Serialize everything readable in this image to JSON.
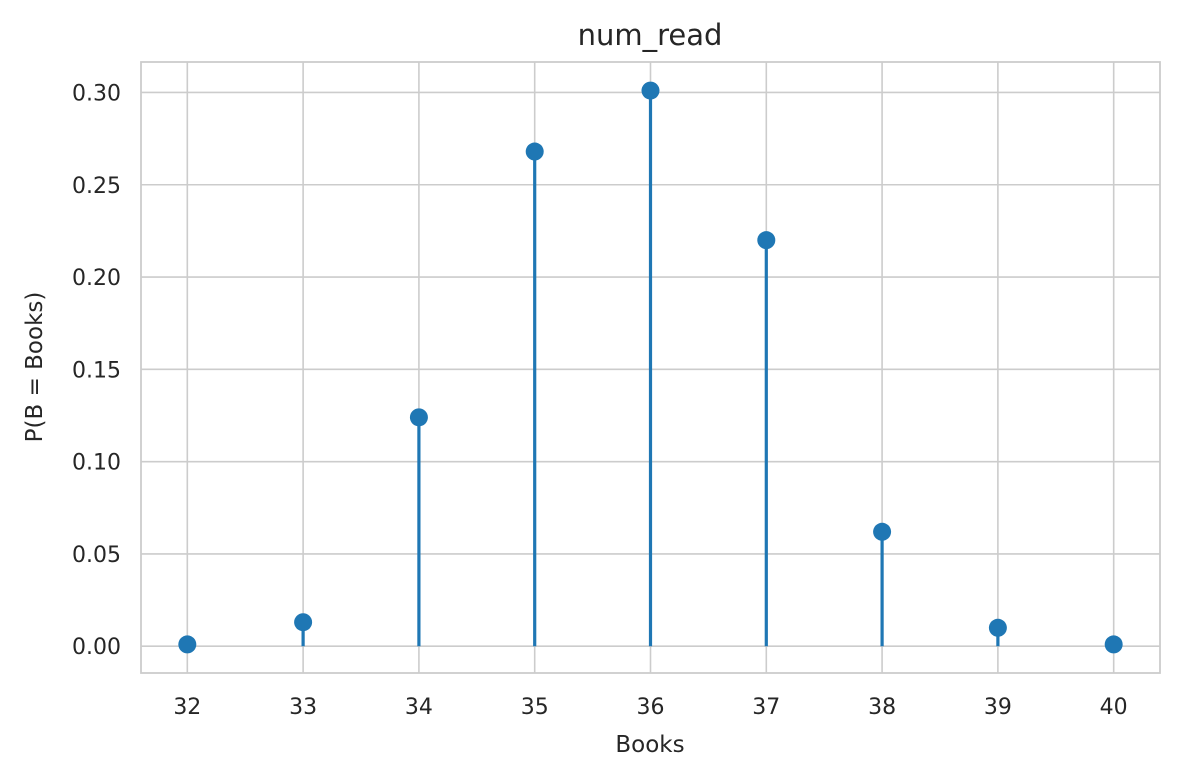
{
  "chart_data": {
    "type": "scatter",
    "title": "num_read",
    "xlabel": "Books",
    "ylabel": "P(B = Books)",
    "x": [
      32,
      33,
      34,
      35,
      36,
      37,
      38,
      39,
      40
    ],
    "y": [
      0.001,
      0.013,
      0.124,
      0.268,
      0.301,
      0.22,
      0.062,
      0.01,
      0.001
    ],
    "xticks": [
      "32",
      "33",
      "34",
      "35",
      "36",
      "37",
      "38",
      "39",
      "40"
    ],
    "yticks": [
      "0.00",
      "0.05",
      "0.10",
      "0.15",
      "0.20",
      "0.25",
      "0.30"
    ],
    "xlim": [
      31.6,
      40.4
    ],
    "ylim": [
      -0.0145,
      0.3165
    ],
    "grid": true,
    "color": "#1f77b4"
  }
}
